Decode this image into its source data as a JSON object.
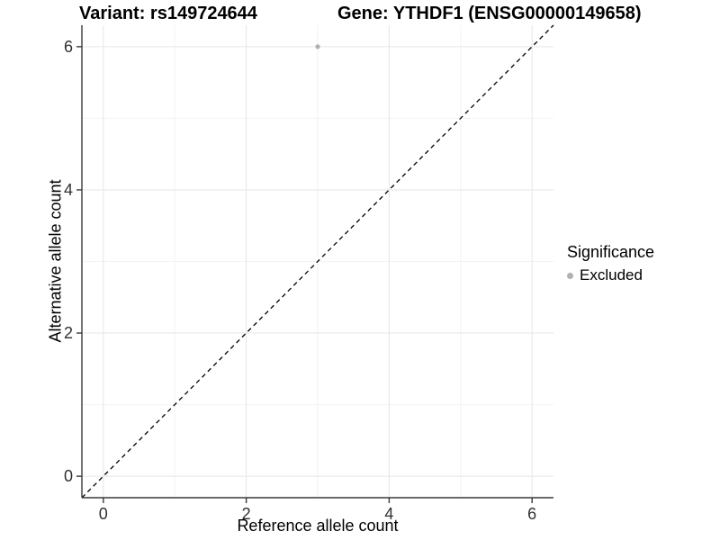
{
  "chart_data": {
    "type": "scatter",
    "title_left": "Variant: rs149724644",
    "title_right": "Gene: YTHDF1 (ENSG00000149658)",
    "xlabel": "Reference allele count",
    "ylabel": "Alternative allele count",
    "xlim": [
      -0.3,
      6.3
    ],
    "ylim": [
      -0.3,
      6.3
    ],
    "x_ticks": [
      0,
      2,
      4,
      6
    ],
    "y_ticks": [
      0,
      2,
      4,
      6
    ],
    "x_minor_ticks": [
      1,
      3,
      5
    ],
    "y_minor_ticks": [
      1,
      3,
      5
    ],
    "grid": true,
    "points": [
      {
        "x": 3,
        "y": 6,
        "series": "Excluded"
      }
    ],
    "abline": {
      "slope": 1,
      "intercept": 0,
      "style": "dashed",
      "color": "#000000"
    },
    "legend": {
      "title": "Significance",
      "position": "right",
      "entries": [
        {
          "label": "Excluded",
          "color": "#b1b1b1",
          "marker": "circle"
        }
      ]
    },
    "colors": {
      "point": "#b1b1b1",
      "grid_major": "#e6e6e6",
      "grid_minor": "#f2f2f2",
      "axis": "#3a3a3a",
      "tick_label": "#303030",
      "text": "#000000",
      "background": "#ffffff"
    }
  }
}
